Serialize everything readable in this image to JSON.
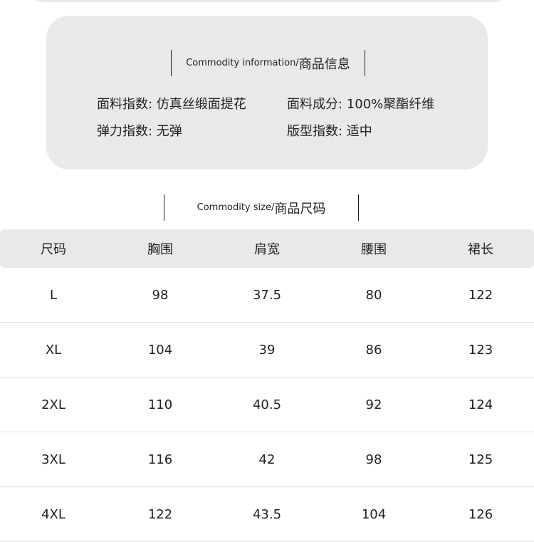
{
  "info": {
    "title_en": "Commodity information/",
    "title_zh": "商品信息",
    "fields": [
      {
        "label": "面料指数: ",
        "value": "仿真丝缎面提花"
      },
      {
        "label": "面料成分: ",
        "value": "100%聚酯纤维"
      },
      {
        "label": "弹力指数: ",
        "value": "无弹"
      },
      {
        "label": "版型指数: ",
        "value": "适中"
      }
    ]
  },
  "size": {
    "title_en": "Commodity size/",
    "title_zh": "商品尺码",
    "headers": [
      "尺码",
      "胸围",
      "肩宽",
      "腰围",
      "裙长"
    ],
    "rows": [
      [
        "L",
        "98",
        "37.5",
        "80",
        "122"
      ],
      [
        "XL",
        "104",
        "39",
        "86",
        "123"
      ],
      [
        "2XL",
        "110",
        "40.5",
        "92",
        "124"
      ],
      [
        "3XL",
        "116",
        "42",
        "98",
        "125"
      ],
      [
        "4XL",
        "122",
        "43.5",
        "104",
        "126"
      ]
    ]
  }
}
